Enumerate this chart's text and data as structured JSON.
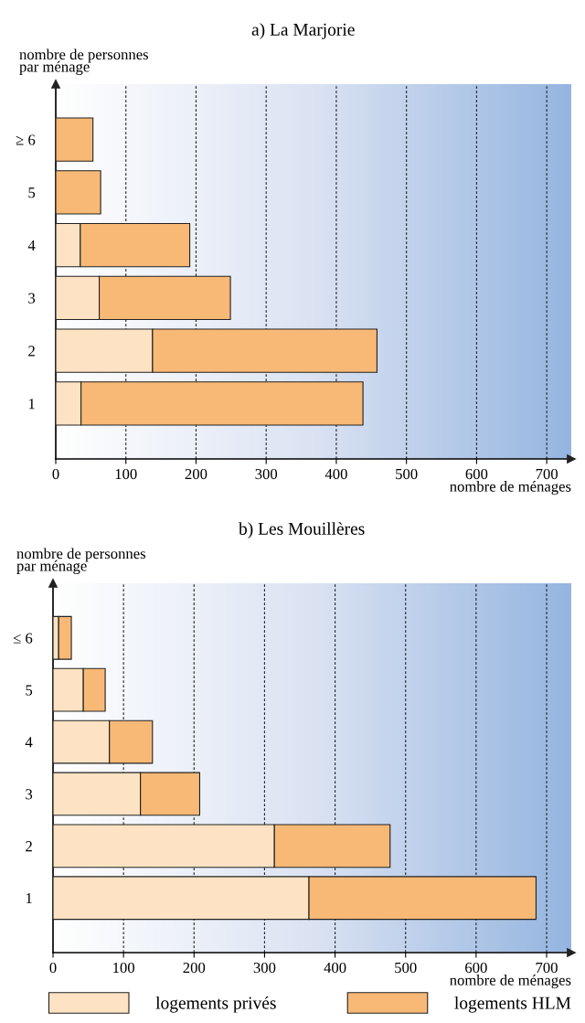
{
  "chart_data": [
    {
      "type": "bar",
      "orientation": "horizontal",
      "stacked": true,
      "title": "a) La Marjorie",
      "ylabel": "nombre de personnes\npar ménage",
      "xlabel": "nombre de ménages",
      "categories": [
        "≥ 6",
        "5",
        "4",
        "3",
        "2",
        "1"
      ],
      "series": [
        {
          "color": "#fde3c3",
          "values": [
            0,
            0,
            35,
            62,
            138,
            36
          ]
        },
        {
          "color": "#f9b976",
          "values": [
            53,
            64,
            156,
            187,
            320,
            402
          ]
        }
      ],
      "xlim": [
        0,
        735
      ],
      "xticks": [
        0,
        100,
        200,
        300,
        400,
        500,
        600,
        700
      ],
      "grid": "x",
      "legend": false
    },
    {
      "type": "bar",
      "orientation": "horizontal",
      "stacked": true,
      "title": "b) Les Mouillères",
      "ylabel": "nombre de personnes\npar ménage",
      "xlabel": "nombre de ménages",
      "categories": [
        "≤ 6",
        "5",
        "4",
        "3",
        "2",
        "1"
      ],
      "series": [
        {
          "name": "logements privés",
          "color": "#fde3c3",
          "values": [
            8,
            43,
            80,
            124,
            314,
            363
          ]
        },
        {
          "name": "logements HLM",
          "color": "#f9b976",
          "values": [
            18,
            31,
            61,
            84,
            164,
            322
          ]
        }
      ],
      "xlim": [
        0,
        735
      ],
      "xticks": [
        0,
        100,
        200,
        300,
        400,
        500,
        600,
        700
      ],
      "grid": "x",
      "legend": "bottom"
    }
  ]
}
